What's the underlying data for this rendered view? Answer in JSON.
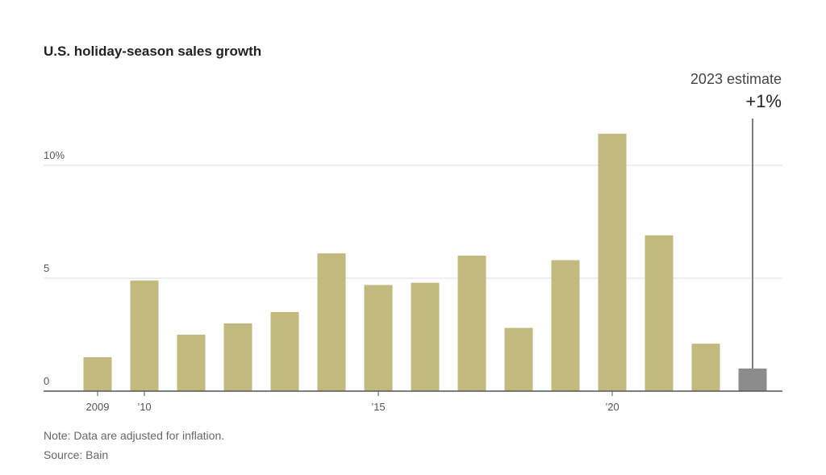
{
  "chart_data": {
    "type": "bar",
    "title": "U.S. holiday-season sales growth",
    "categories": [
      "2009",
      "2010",
      "2011",
      "2012",
      "2013",
      "2014",
      "2015",
      "2016",
      "2017",
      "2018",
      "2019",
      "2020",
      "2021",
      "2022",
      "2023"
    ],
    "x_tick_labels": [
      {
        "category": "2009",
        "label": "2009"
      },
      {
        "category": "2010",
        "label": "’10"
      },
      {
        "category": "2015",
        "label": "’15"
      },
      {
        "category": "2020",
        "label": "’20"
      }
    ],
    "series": [
      {
        "values": [
          1.5,
          4.9,
          2.5,
          3.0,
          3.5,
          6.1,
          4.7,
          4.8,
          6.0,
          2.8,
          5.8,
          11.4,
          6.9,
          2.1,
          1.0
        ]
      }
    ],
    "y_ticks": [
      {
        "value": 0,
        "label": "0"
      },
      {
        "value": 5,
        "label": "5"
      },
      {
        "value": 10,
        "label": "10%"
      }
    ],
    "ylim": [
      0,
      12
    ],
    "grid": true,
    "annotation": {
      "category": "2023",
      "label": "2023 estimate",
      "value_text": "+1%"
    },
    "colors": {
      "bar": "#c2b97f",
      "estimate_bar": "#8c8c8c",
      "grid": "#dddddd",
      "axis": "#555555"
    }
  },
  "footer": {
    "note": "Note: Data are adjusted for inflation.",
    "source": "Source: Bain"
  }
}
